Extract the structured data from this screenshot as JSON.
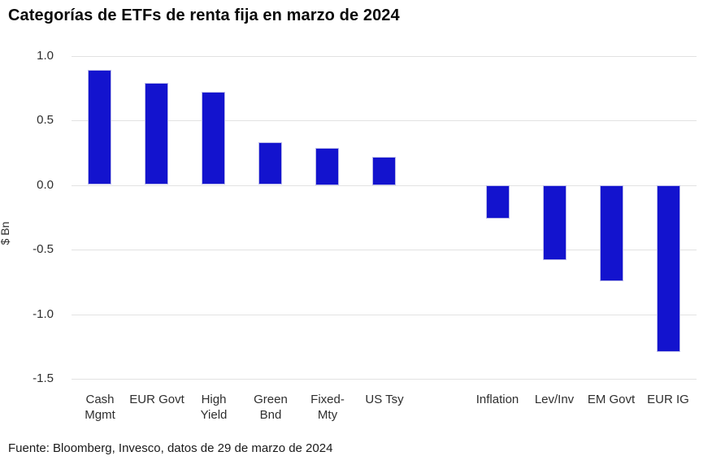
{
  "title": "Categorías de ETFs de renta fija en marzo de 2024",
  "footer": "Fuente: Bloomberg, Invesco, datos de 29 de marzo de 2024",
  "chart_data": {
    "type": "bar",
    "title": "Categorías de ETFs de renta fija en marzo de 2024",
    "xlabel": "",
    "ylabel": "$ Bn",
    "ylim": [
      -1.5,
      1.0
    ],
    "yticks": [
      1.0,
      0.5,
      0.0,
      -0.5,
      -1.0,
      -1.5
    ],
    "ytick_labels": [
      "1.0",
      "0.5",
      "0.0",
      "-0.5",
      "-1.0",
      "-1.5"
    ],
    "grid": true,
    "legend": false,
    "bar_color": "#1313ce",
    "categories": [
      "Cash Mgmt",
      "EUR Govt",
      "High Yield",
      "Green Bnd",
      "Fixed-Mty",
      "US Tsy",
      "Inflation",
      "Lev/Inv",
      "EM Govt",
      "EUR IG"
    ],
    "category_labels": [
      [
        "Cash",
        "Mgmt"
      ],
      [
        "EUR Govt"
      ],
      [
        "High",
        "Yield"
      ],
      [
        "Green",
        "Bnd"
      ],
      [
        "Fixed-",
        "Mty"
      ],
      [
        "US Tsy"
      ],
      [
        "Inflation"
      ],
      [
        "Lev/Inv"
      ],
      [
        "EM Govt"
      ],
      [
        "EUR IG"
      ]
    ],
    "values": [
      0.89,
      0.79,
      0.72,
      0.33,
      0.29,
      0.22,
      -0.26,
      -0.58,
      -0.74,
      -1.29
    ],
    "group_gap_after_index": 5,
    "source": "Fuente: Bloomberg, Invesco, datos de 29 de marzo de 2024"
  }
}
